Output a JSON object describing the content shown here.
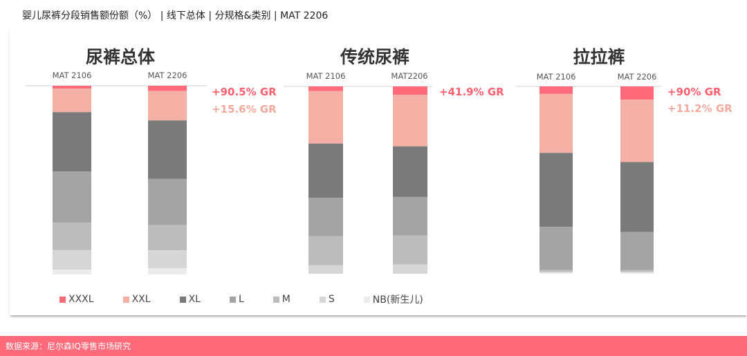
{
  "title": "婴儿尿裤分段销售额份额（%） | 线下总体 | 分规格&类别 | MAT 2206",
  "source": "数据来源：尼尔森IQ零售市场研究",
  "colors": {
    "XXXL": "#ff6b7a",
    "XXL": "#f4b0a4",
    "XL": "#7a7a7a",
    "L": "#a4a4a4",
    "M": "#bcbcbc",
    "S": "#d6d6d6",
    "NB(新生儿)": "#ececec",
    "gr_primary": "#ff5f6e",
    "gr_secondary": "#f4a89c"
  },
  "chart_data": {
    "type": "bar",
    "stacked": true,
    "normalized": true,
    "segments": [
      "XXXL",
      "XXL",
      "XL",
      "L",
      "M",
      "S",
      "NB(新生儿)"
    ],
    "legend": [
      "XXXL",
      "XXL",
      "XL",
      "L",
      "M",
      "S",
      "NB(新生儿)"
    ],
    "legend_position": "bottom",
    "panels": [
      {
        "title": "尿裤总体",
        "categories": [
          "MAT 2106",
          "MAT 2206"
        ],
        "series": [
          {
            "name": "XXXL",
            "values": [
              1.5,
              2.8
            ]
          },
          {
            "name": "XXL",
            "values": [
              12.5,
              15.6
            ]
          },
          {
            "name": "XL",
            "values": [
              31.5,
              31.0
            ]
          },
          {
            "name": "L",
            "values": [
              27.0,
              24.5
            ]
          },
          {
            "name": "M",
            "values": [
              14.5,
              13.3
            ]
          },
          {
            "name": "S",
            "values": [
              10.5,
              9.6
            ]
          },
          {
            "name": "NB(新生儿)",
            "values": [
              2.5,
              3.2
            ]
          }
        ],
        "annotations": [
          "+90.5% GR",
          "+15.6% GR"
        ]
      },
      {
        "title": "传统尿裤",
        "categories": [
          "MAT 2106",
          "MAT2206"
        ],
        "series": [
          {
            "name": "XXXL",
            "values": [
              2.5,
              4.5
            ]
          },
          {
            "name": "XXL",
            "values": [
              28.0,
              27.5
            ]
          },
          {
            "name": "XL",
            "values": [
              29.0,
              27.0
            ]
          },
          {
            "name": "L",
            "values": [
              20.5,
              20.5
            ]
          },
          {
            "name": "M",
            "values": [
              15.5,
              15.5
            ]
          },
          {
            "name": "S",
            "values": [
              4.5,
              5.0
            ]
          },
          {
            "name": "NB(新生儿)",
            "values": [
              0,
              0
            ]
          }
        ],
        "annotations": [
          "+41.9% GR"
        ]
      },
      {
        "title": "拉拉裤",
        "categories": [
          "MAT 2106",
          "MAT 2206"
        ],
        "series": [
          {
            "name": "XXXL",
            "values": [
              4.0,
              7.0
            ]
          },
          {
            "name": "XXL",
            "values": [
              31.5,
              33.0
            ]
          },
          {
            "name": "XL",
            "values": [
              39.5,
              37.0
            ]
          },
          {
            "name": "L",
            "values": [
              23.0,
              20.0
            ]
          },
          {
            "name": "M",
            "values": [
              1.0,
              1.0
            ]
          },
          {
            "name": "S",
            "values": [
              0.5,
              0.5
            ]
          },
          {
            "name": "NB(新生儿)",
            "values": [
              0.5,
              0.5
            ]
          }
        ],
        "annotations": [
          "+90% GR",
          "+11.2% GR"
        ]
      }
    ]
  }
}
